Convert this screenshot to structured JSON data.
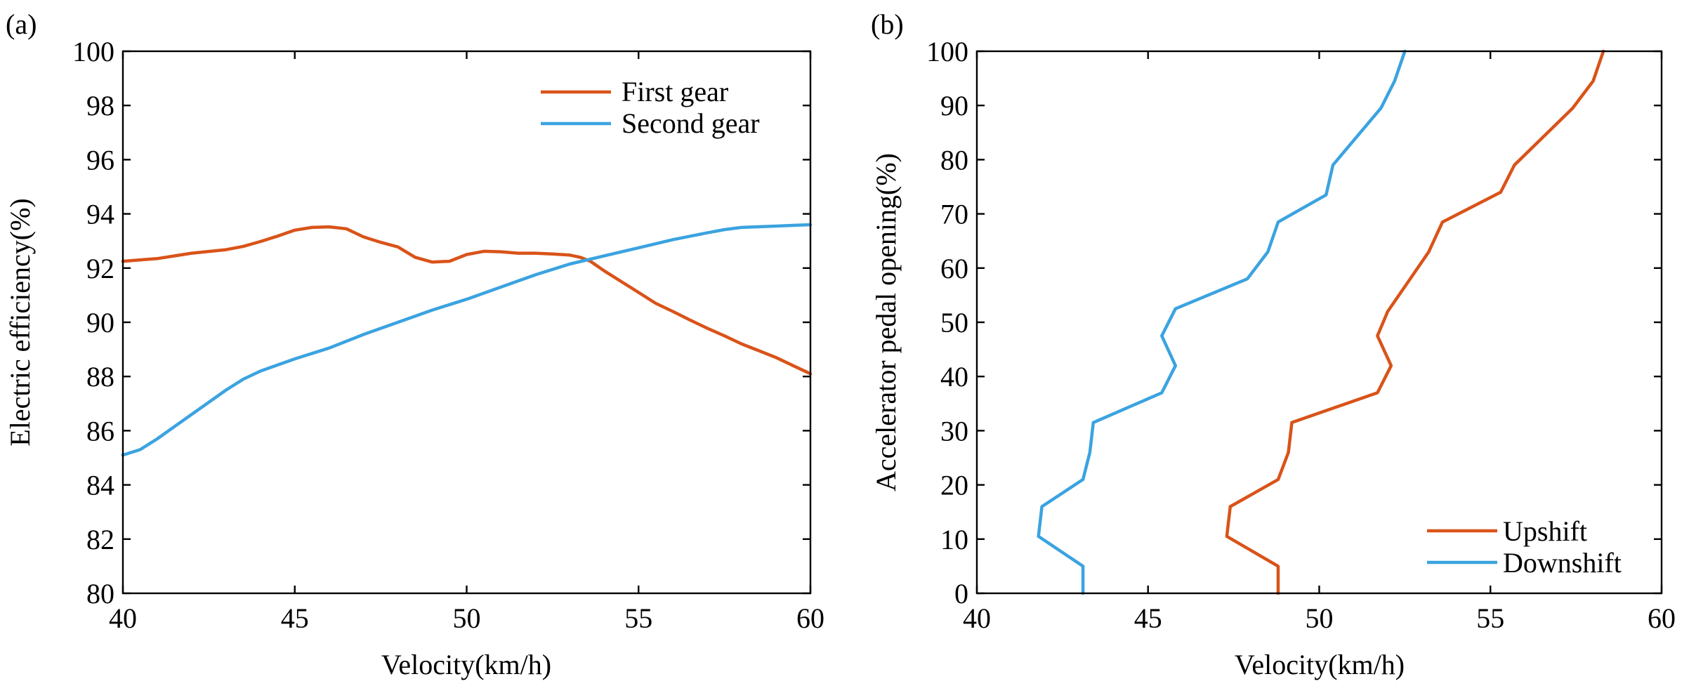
{
  "chart_data": [
    {
      "panel_label": "(a)",
      "type": "line",
      "title": "",
      "xlabel": "Velocity(km/h)",
      "ylabel": "Electric efficiency(%)",
      "xlim": [
        40,
        60
      ],
      "ylim": [
        80,
        100
      ],
      "xticks": [
        "40",
        "45",
        "50",
        "55",
        "60"
      ],
      "yticks": [
        "80",
        "82",
        "84",
        "86",
        "88",
        "90",
        "92",
        "94",
        "96",
        "98",
        "100"
      ],
      "legend_position": "top-right",
      "series": [
        {
          "name": "First gear",
          "color": "#d95319",
          "x": [
            40,
            41,
            42,
            43,
            43.5,
            44,
            44.5,
            45,
            45.5,
            46,
            46.5,
            47,
            47.5,
            48,
            48.5,
            49,
            49.5,
            50,
            50.5,
            51,
            51.5,
            52,
            52.5,
            53,
            53.3,
            53.6,
            54,
            54.5,
            55,
            55.5,
            56,
            56.5,
            57,
            57.5,
            58,
            58.5,
            59,
            59.5,
            60
          ],
          "y": [
            92.25,
            92.35,
            92.55,
            92.68,
            92.8,
            92.98,
            93.18,
            93.4,
            93.5,
            93.52,
            93.45,
            93.15,
            92.95,
            92.78,
            92.4,
            92.22,
            92.25,
            92.5,
            92.62,
            92.6,
            92.55,
            92.55,
            92.52,
            92.48,
            92.4,
            92.25,
            91.9,
            91.5,
            91.1,
            90.7,
            90.4,
            90.08,
            89.78,
            89.5,
            89.2,
            88.95,
            88.7,
            88.4,
            88.1
          ]
        },
        {
          "name": "Second gear",
          "color": "#3ba3e0",
          "x": [
            40,
            40.5,
            41,
            42,
            43,
            43.5,
            44,
            45,
            46,
            47,
            48,
            49,
            50,
            51,
            52,
            53,
            54,
            55,
            56,
            57,
            57.5,
            58,
            59,
            60
          ],
          "y": [
            85.1,
            85.3,
            85.7,
            86.6,
            87.5,
            87.9,
            88.2,
            88.65,
            89.05,
            89.55,
            90.0,
            90.45,
            90.85,
            91.3,
            91.75,
            92.15,
            92.45,
            92.75,
            93.05,
            93.3,
            93.42,
            93.5,
            93.55,
            93.6
          ]
        }
      ]
    },
    {
      "panel_label": "(b)",
      "type": "line",
      "title": "",
      "xlabel": "Velocity(km/h)",
      "ylabel": "Accelerator pedal opening(%)",
      "xlim": [
        40,
        60
      ],
      "ylim": [
        0,
        100
      ],
      "xticks": [
        "40",
        "45",
        "50",
        "55",
        "60"
      ],
      "yticks": [
        "0",
        "10",
        "20",
        "30",
        "40",
        "50",
        "60",
        "70",
        "80",
        "90",
        "100"
      ],
      "legend_position": "bottom-right",
      "series": [
        {
          "name": "Upshift",
          "color": "#d95319",
          "x": [
            48.8,
            48.8,
            47.3,
            47.4,
            48.8,
            49.1,
            49.2,
            51.7,
            52.1,
            51.7,
            52.0,
            52.6,
            53.2,
            53.6,
            55.3,
            55.7,
            57.4,
            58.0,
            58.3
          ],
          "y": [
            0,
            5,
            10.5,
            16,
            21,
            26,
            31.5,
            37,
            42,
            47.5,
            52,
            57.5,
            63,
            68.5,
            74,
            79,
            89.5,
            94.5,
            100
          ],
          "x_min_side": null
        },
        {
          "name": "Downshift",
          "color": "#3ba3e0",
          "x": [
            43.1,
            43.1,
            41.8,
            41.9,
            43.1,
            43.3,
            43.4,
            45.4,
            45.8,
            45.4,
            45.8,
            47.9,
            48.5,
            48.8,
            50.2,
            50.4,
            51.8,
            52.2,
            52.5
          ],
          "y": [
            0,
            5,
            10.5,
            16,
            21,
            26,
            31.5,
            37,
            42,
            47.5,
            52.5,
            58,
            63,
            68.5,
            73.5,
            79,
            89.5,
            94.5,
            100
          ]
        }
      ]
    }
  ]
}
